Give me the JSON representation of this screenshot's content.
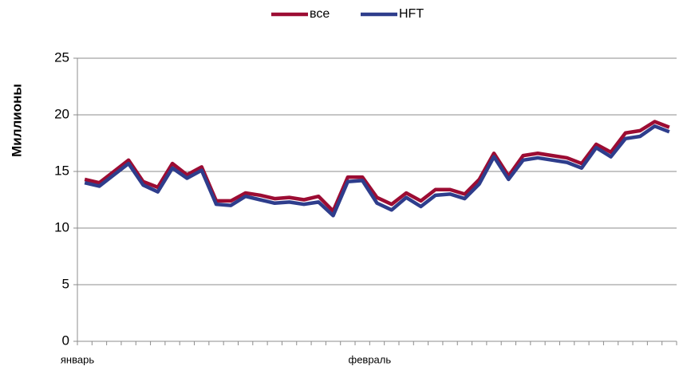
{
  "chart_data": {
    "type": "line",
    "y_label": "Миллионы",
    "categories": [
      "январь",
      null,
      null,
      null,
      null,
      null,
      null,
      null,
      null,
      null,
      null,
      null,
      null,
      null,
      null,
      null,
      null,
      null,
      null,
      null,
      "февраль",
      null,
      null,
      null,
      null,
      null,
      null,
      null,
      null,
      null,
      null,
      null,
      null,
      null,
      null,
      null,
      null,
      null,
      null,
      null,
      null
    ],
    "series": [
      {
        "name": "все",
        "color": "#9c0c33",
        "values": [
          14.3,
          14.0,
          15.0,
          16.0,
          14.1,
          13.6,
          15.7,
          14.7,
          15.4,
          12.4,
          12.4,
          13.1,
          12.9,
          12.6,
          12.7,
          12.5,
          12.8,
          11.5,
          14.5,
          14.5,
          12.7,
          12.1,
          13.1,
          12.4,
          13.4,
          13.4,
          13.0,
          14.3,
          16.6,
          14.6,
          16.4,
          16.6,
          16.4,
          16.2,
          15.7,
          17.4,
          16.7,
          18.4,
          18.6,
          19.4,
          18.9
        ]
      },
      {
        "name": "HFT",
        "color": "#2e3d8c",
        "values": [
          14.0,
          13.7,
          14.7,
          15.7,
          13.8,
          13.2,
          15.3,
          14.4,
          15.1,
          12.1,
          12.0,
          12.8,
          12.5,
          12.2,
          12.3,
          12.1,
          12.3,
          11.1,
          14.1,
          14.2,
          12.2,
          11.6,
          12.7,
          11.9,
          12.9,
          13.0,
          12.6,
          13.9,
          16.3,
          14.3,
          16.0,
          16.2,
          16.0,
          15.8,
          15.3,
          17.1,
          16.3,
          17.9,
          18.1,
          19.0,
          18.5
        ]
      }
    ],
    "ylim": [
      0,
      25
    ],
    "yticks": [
      0,
      5,
      10,
      15,
      20,
      25
    ],
    "grid": true,
    "legend": "top"
  }
}
